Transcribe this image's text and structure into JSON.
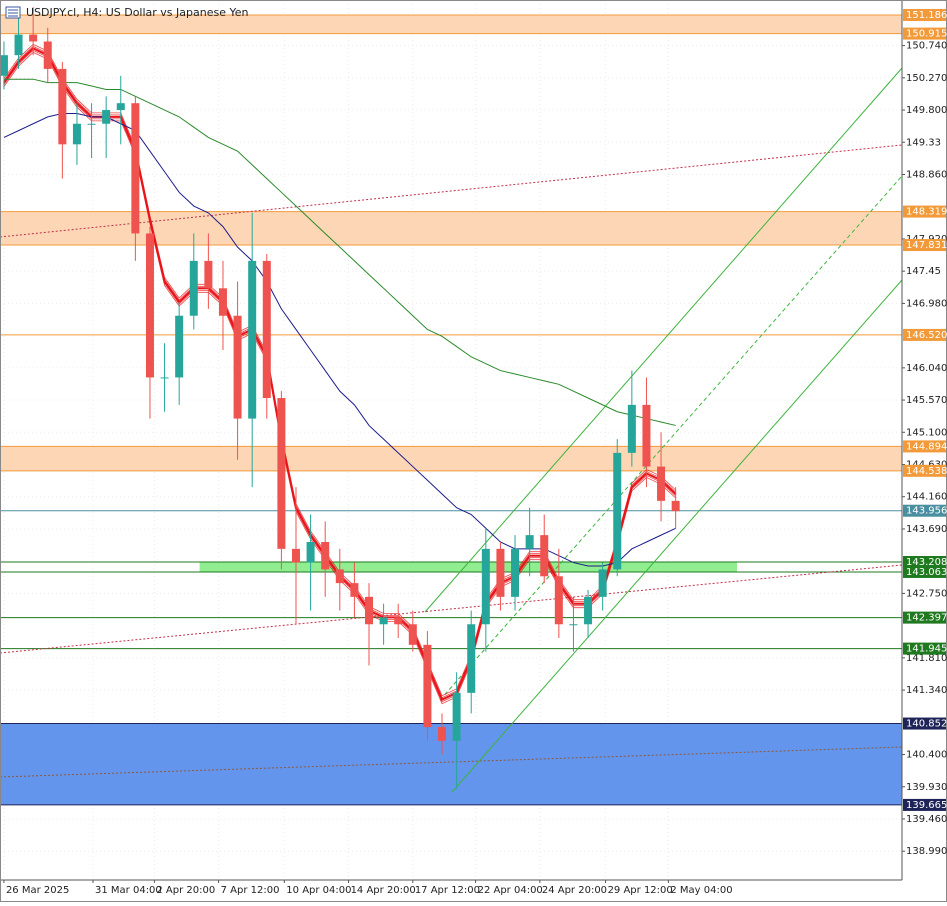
{
  "chart_data": {
    "type": "candlestick",
    "title": "USDJPY.cl, H4:  US Dollar vs Japanese Yen",
    "up_color": "#26a69a",
    "down_color": "#ef5350",
    "xlim": [
      -0.27,
      61.5
    ],
    "ylim": [
      138.57,
      151.405
    ],
    "xticks": [
      {
        "value": 0,
        "label": "26 Mar 2025"
      },
      {
        "value": 6.1,
        "label": "31 Mar 04:00"
      },
      {
        "value": 10.3,
        "label": "2 Apr 20:00"
      },
      {
        "value": 14.7,
        "label": "7 Apr 12:00"
      },
      {
        "value": 19.2,
        "label": "10 Apr 04:00"
      },
      {
        "value": 23.6,
        "label": "14 Apr 20:00"
      },
      {
        "value": 28,
        "label": "17 Apr 12:00"
      },
      {
        "value": 32.3,
        "label": "22 Apr 04:00"
      },
      {
        "value": 36.7,
        "label": "24 Apr 20:00"
      },
      {
        "value": 41.2,
        "label": "29 Apr 12:00"
      },
      {
        "value": 45.5,
        "label": "2 May 04:00"
      }
    ],
    "yticks": [
      {
        "value": 150.74,
        "label": "150.740"
      },
      {
        "value": 150.27,
        "label": "150.270"
      },
      {
        "value": 149.8,
        "label": "149.800"
      },
      149.33,
      {
        "value": 148.86,
        "label": "148.860"
      },
      {
        "value": 147.92,
        "label": "147.920"
      },
      147.45,
      {
        "value": 146.98,
        "label": "146.980"
      },
      {
        "value": 146.04,
        "label": "146.040"
      },
      {
        "value": 145.57,
        "label": "145.570"
      },
      {
        "value": 145.1,
        "label": "145.100"
      },
      {
        "value": 144.63,
        "label": "144.630"
      },
      {
        "value": 144.16,
        "label": "144.160"
      },
      {
        "value": 143.69,
        "label": "143.690"
      },
      {
        "value": 142.75,
        "label": "142.750"
      },
      {
        "value": 141.81,
        "label": "141.810"
      },
      {
        "value": 141.34,
        "label": "141.340"
      },
      {
        "value": 140.4,
        "label": "140.400"
      },
      {
        "value": 139.93,
        "label": "139.930"
      },
      {
        "value": 139.46,
        "label": "139.460"
      },
      {
        "value": 138.99,
        "label": "138.990"
      }
    ],
    "grid": true,
    "open": [
      150.3,
      150.6,
      150.9,
      150.8,
      150.4,
      149.3,
      149.6,
      149.6,
      149.8,
      149.9,
      148.0,
      145.9,
      145.9,
      146.8,
      147.6,
      147.2,
      146.8,
      145.3,
      147.6,
      145.6,
      143.4,
      143.2,
      143.5,
      143.1,
      142.9,
      142.7,
      142.3,
      142.4,
      142.3,
      142.0,
      140.8,
      140.6,
      141.3,
      142.3,
      143.4,
      142.7,
      143.4,
      143.6,
      143.0,
      142.3,
      142.3,
      142.7,
      143.1,
      144.8,
      145.5,
      144.6,
      144.1
    ],
    "high": [
      150.8,
      151.2,
      151.3,
      151.0,
      150.5,
      149.9,
      149.9,
      150.0,
      150.3,
      150.0,
      148.1,
      146.4,
      147.0,
      148.0,
      148.0,
      147.6,
      147.3,
      148.3,
      147.7,
      145.7,
      144.3,
      143.9,
      143.8,
      143.4,
      143.2,
      142.9,
      142.6,
      142.6,
      142.5,
      142.2,
      141.0,
      141.6,
      142.5,
      143.7,
      143.5,
      143.6,
      144.0,
      143.9,
      143.4,
      142.7,
      142.8,
      143.2,
      145.0,
      146.0,
      145.9,
      145.1,
      144.3
    ],
    "low": [
      150.1,
      150.4,
      150.6,
      150.2,
      148.8,
      149.0,
      149.1,
      149.1,
      149.3,
      147.6,
      145.3,
      145.4,
      145.5,
      146.6,
      146.9,
      146.3,
      144.7,
      144.3,
      145.3,
      143.1,
      142.3,
      142.5,
      142.7,
      142.5,
      142.4,
      141.7,
      142.0,
      142.1,
      141.9,
      140.6,
      140.4,
      139.9,
      141.0,
      141.9,
      142.5,
      142.5,
      143.0,
      142.9,
      142.1,
      141.9,
      142.1,
      142.5,
      143.0,
      144.6,
      144.3,
      143.8,
      143.7
    ],
    "close": [
      150.6,
      150.9,
      150.8,
      150.4,
      149.3,
      149.6,
      149.6,
      149.8,
      149.9,
      148.0,
      145.9,
      145.9,
      146.8,
      147.6,
      147.2,
      146.8,
      145.3,
      147.6,
      145.6,
      143.4,
      143.2,
      143.5,
      143.1,
      142.9,
      142.7,
      142.3,
      142.4,
      142.3,
      142.0,
      140.8,
      140.6,
      141.3,
      142.3,
      143.4,
      142.7,
      143.4,
      143.6,
      143.0,
      142.3,
      142.3,
      142.7,
      143.1,
      144.8,
      145.5,
      144.6,
      144.1,
      143.95
    ],
    "moving_averages": [
      {
        "color": "#e8141a",
        "values": [
          150.2,
          150.5,
          150.7,
          150.6,
          150.2,
          149.9,
          149.7,
          149.7,
          149.7,
          149.2,
          148.2,
          147.3,
          147.0,
          147.2,
          147.2,
          147.0,
          146.5,
          146.6,
          146.2,
          145.0,
          144.0,
          143.6,
          143.3,
          143.0,
          142.8,
          142.5,
          142.4,
          142.4,
          142.2,
          141.7,
          141.2,
          141.3,
          141.8,
          142.6,
          142.9,
          143.0,
          143.3,
          143.3,
          142.9,
          142.6,
          142.6,
          142.8,
          143.5,
          144.3,
          144.5,
          144.4,
          144.2
        ]
      },
      {
        "color": "#1c1c8c",
        "values": [
          149.4,
          149.5,
          149.6,
          149.7,
          149.75,
          149.75,
          149.7,
          149.7,
          149.6,
          149.5,
          149.2,
          148.9,
          148.6,
          148.4,
          148.3,
          148.1,
          147.8,
          147.6,
          147.3,
          146.9,
          146.6,
          146.3,
          146.0,
          145.7,
          145.5,
          145.2,
          145.0,
          144.8,
          144.6,
          144.4,
          144.2,
          144.0,
          143.9,
          143.7,
          143.5,
          143.4,
          143.4,
          143.4,
          143.3,
          143.2,
          143.15,
          143.15,
          143.2,
          143.4,
          143.5,
          143.6,
          143.7
        ]
      },
      {
        "color": "#2a8a2a",
        "values": [
          150.25,
          150.25,
          150.25,
          150.2,
          150.2,
          150.2,
          150.15,
          150.1,
          150.1,
          150.0,
          149.9,
          149.8,
          149.7,
          149.55,
          149.4,
          149.3,
          149.2,
          149.0,
          148.8,
          148.6,
          148.4,
          148.2,
          148.0,
          147.8,
          147.6,
          147.4,
          147.2,
          147.0,
          146.8,
          146.6,
          146.5,
          146.35,
          146.2,
          146.1,
          146.0,
          145.95,
          145.9,
          145.85,
          145.8,
          145.7,
          145.6,
          145.5,
          145.4,
          145.35,
          145.3,
          145.25,
          145.2
        ]
      }
    ],
    "zones": [
      {
        "top": 151.186,
        "bottom": 150.915,
        "color": "#fdd7b5",
        "edge": "#f29a3a"
      },
      {
        "top": 148.319,
        "bottom": 147.831,
        "color": "#fdd7b5",
        "edge": "#f29a3a"
      },
      {
        "top": 144.894,
        "bottom": 144.538,
        "color": "#fdd7b5",
        "edge": "#f29a3a"
      },
      {
        "top": 143.208,
        "bottom": 143.063,
        "color": "#90ee90",
        "edge": "#1f7a1f",
        "start": 13.4,
        "end": 50.2
      },
      {
        "top": 140.852,
        "bottom": 139.665,
        "color": "#6495ed",
        "edge": "#1e2458"
      }
    ],
    "levels": [
      {
        "value": 146.52,
        "label": "146.520",
        "color": "#f29a3a"
      },
      {
        "value": 143.956,
        "color": "#4a8fa0"
      },
      {
        "value": 142.397,
        "color": "#1f7a1f"
      },
      {
        "value": 141.945,
        "color": "#1f7a1f"
      }
    ]
  }
}
